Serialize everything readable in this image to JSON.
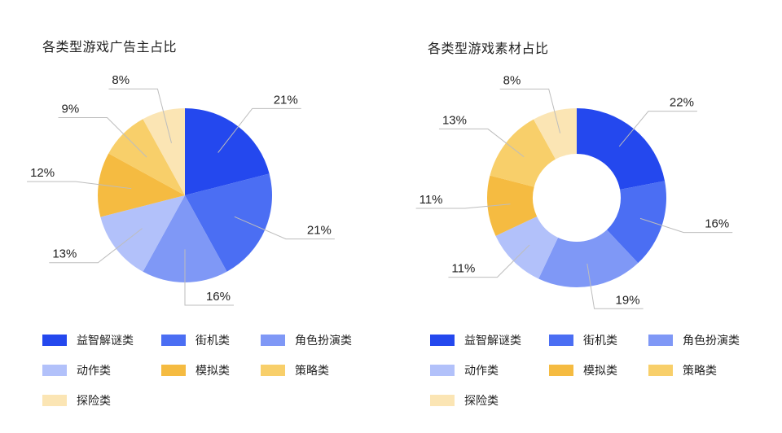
{
  "categories": [
    "益智解谜类",
    "街机类",
    "角色扮演类",
    "动作类",
    "模拟类",
    "策略类",
    "探险类"
  ],
  "colors": [
    "#2448ee",
    "#4b6ef3",
    "#7f98f6",
    "#b2c1fa",
    "#f5bb41",
    "#f8cf6a",
    "#fbe5b4"
  ],
  "chart_data": [
    {
      "type": "pie",
      "title": "各类型游戏广告主占比",
      "categories": [
        "益智解谜类",
        "街机类",
        "角色扮演类",
        "动作类",
        "模拟类",
        "策略类",
        "探险类"
      ],
      "values": [
        21,
        21,
        16,
        13,
        12,
        9,
        8
      ],
      "value_labels": [
        "21%",
        "21%",
        "16%",
        "13%",
        "12%",
        "9%",
        "8%"
      ],
      "legend_position": "bottom"
    },
    {
      "type": "pie",
      "variant": "donut",
      "title": "各类型游戏素材占比",
      "categories": [
        "益智解谜类",
        "街机类",
        "角色扮演类",
        "动作类",
        "模拟类",
        "策略类",
        "探险类"
      ],
      "values": [
        22,
        16,
        19,
        11,
        11,
        13,
        8
      ],
      "value_labels": [
        "22%",
        "16%",
        "19%",
        "11%",
        "11%",
        "13%",
        "8%"
      ],
      "legend_position": "bottom"
    }
  ]
}
